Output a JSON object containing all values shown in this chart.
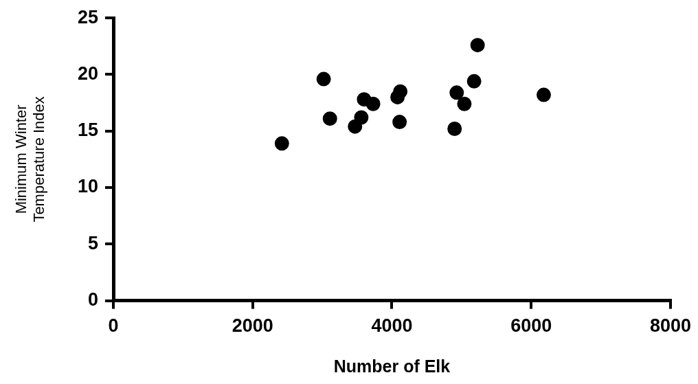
{
  "chart_data": {
    "type": "scatter",
    "xlabel": "Number of Elk",
    "ylabel": "Minimum Winter Temperature Index",
    "xlim": [
      0,
      8000
    ],
    "xticks": [
      0,
      2000,
      4000,
      6000,
      8000
    ],
    "ylim": [
      0,
      25
    ],
    "yticks": [
      0,
      5,
      10,
      15,
      20,
      25
    ],
    "grid": false,
    "legend": false,
    "marker": "circle",
    "series": [
      {
        "color": "#000000",
        "x": [
          2420,
          3020,
          3110,
          3470,
          3560,
          3600,
          3730,
          4080,
          4120,
          4110,
          4900,
          4930,
          5040,
          5180,
          5230,
          6180
        ],
        "values": [
          13.9,
          19.6,
          16.1,
          15.4,
          16.2,
          17.8,
          17.4,
          18.0,
          18.5,
          15.8,
          15.2,
          18.4,
          17.4,
          19.4,
          22.6,
          18.2
        ]
      }
    ]
  }
}
